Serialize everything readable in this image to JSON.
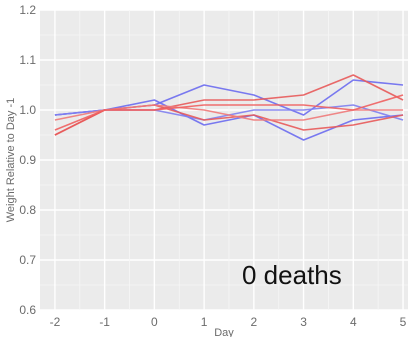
{
  "chart_data": {
    "type": "line",
    "xlabel": "Day",
    "ylabel": "Weight Relative to Day -1",
    "x": [
      -2,
      -1,
      0,
      1,
      2,
      3,
      4,
      5
    ],
    "xlim": [
      -2.3,
      5.1
    ],
    "ylim": [
      0.6,
      1.2
    ],
    "xticks": [
      "-2",
      "-1",
      "0",
      "1",
      "2",
      "3",
      "4",
      "5"
    ],
    "yticks": [
      "0.6",
      "0.7",
      "0.8",
      "0.9",
      "1.0",
      "1.1",
      "1.2"
    ],
    "grid": true,
    "background": "#ebebeb",
    "annotation": "0 deaths",
    "series": [
      {
        "color": "#6b6bf0",
        "values": [
          0.99,
          1.0,
          1.01,
          1.05,
          1.03,
          0.99,
          1.06,
          1.05
        ]
      },
      {
        "color": "#6b6bf0",
        "values": [
          0.99,
          1.0,
          1.02,
          0.97,
          0.99,
          0.94,
          0.98,
          0.99
        ]
      },
      {
        "color": "#8080f0",
        "values": [
          0.99,
          1.0,
          1.0,
          0.98,
          1.0,
          1.0,
          1.01,
          0.98
        ]
      },
      {
        "color": "#e85a5a",
        "values": [
          0.95,
          1.0,
          1.0,
          1.02,
          1.02,
          1.03,
          1.07,
          1.02
        ]
      },
      {
        "color": "#e85a5a",
        "values": [
          0.95,
          1.0,
          1.01,
          0.98,
          0.99,
          0.96,
          0.97,
          0.99
        ]
      },
      {
        "color": "#f07a7a",
        "values": [
          0.98,
          1.0,
          1.01,
          1.0,
          0.98,
          0.98,
          1.0,
          1.0
        ]
      },
      {
        "color": "#ef6060",
        "values": [
          0.96,
          1.0,
          1.0,
          1.01,
          1.01,
          1.01,
          1.0,
          1.03
        ]
      }
    ]
  }
}
